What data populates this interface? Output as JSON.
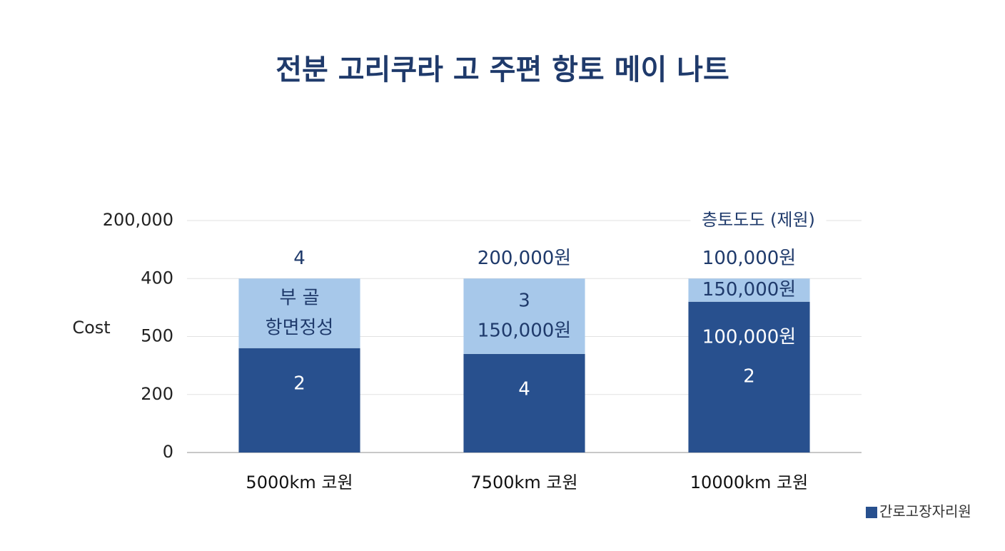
{
  "chart_data": {
    "type": "stacked-bar",
    "title": "전분 고리쿠라 고 주편 항토 메이 나트",
    "y_label": "Cost",
    "annotation": "층토도도 (제원)",
    "categories": [
      "5000km 코원",
      "7500km 코원",
      "10000km 코원"
    ],
    "series": [
      {
        "name": "간로고장자리원",
        "color": "#28508e",
        "values": [
          1.8,
          1.7,
          2.6
        ]
      },
      {
        "name": null,
        "color": "#a7c8ea",
        "values": [
          1.2,
          1.3,
          0.4
        ]
      }
    ],
    "bar_labels": [
      {
        "top": "4",
        "upper": [
          "부 골",
          "항면정성"
        ],
        "lower": [
          "2"
        ]
      },
      {
        "top": "200,000원",
        "upper": [
          "3",
          "150,000원"
        ],
        "lower": [
          "4"
        ]
      },
      {
        "top": "100,000원",
        "upper": [
          "150,000원"
        ],
        "lower": [
          "100,000원",
          "2"
        ]
      }
    ],
    "ylim": [
      0,
      4
    ],
    "yticks": [
      {
        "value": 0,
        "label": "0"
      },
      {
        "value": 1,
        "label": "200"
      },
      {
        "value": 2,
        "label": "500"
      },
      {
        "value": 3,
        "label": "400"
      },
      {
        "value": 4,
        "label": "200,000"
      }
    ],
    "grid": true,
    "legend": "bottom-right"
  }
}
